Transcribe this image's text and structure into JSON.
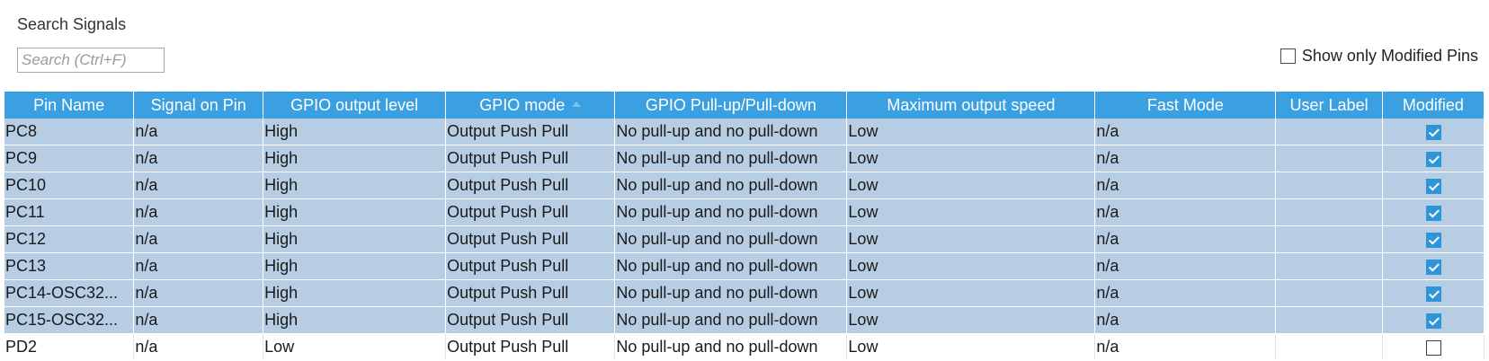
{
  "search": {
    "title": "Search Signals",
    "placeholder": "Search (Ctrl+F)",
    "value": ""
  },
  "filter": {
    "show_modified_label": "Show only Modified Pins",
    "show_modified_checked": false
  },
  "table": {
    "columns": [
      "Pin Name",
      "Signal on Pin",
      "GPIO output level",
      "GPIO mode",
      "GPIO Pull-up/Pull-down",
      "Maximum output speed",
      "Fast Mode",
      "User Label",
      "Modified"
    ],
    "sorted_column": "GPIO mode",
    "sort_direction": "ascending",
    "rows": [
      {
        "pin": "PC8",
        "signal": "n/a",
        "level": "High",
        "mode": "Output Push Pull",
        "pull": "No pull-up and no pull-down",
        "speed": "Low",
        "fast": "n/a",
        "label": "",
        "modified": true,
        "selected": true
      },
      {
        "pin": "PC9",
        "signal": "n/a",
        "level": "High",
        "mode": "Output Push Pull",
        "pull": "No pull-up and no pull-down",
        "speed": "Low",
        "fast": "n/a",
        "label": "",
        "modified": true,
        "selected": true
      },
      {
        "pin": "PC10",
        "signal": "n/a",
        "level": "High",
        "mode": "Output Push Pull",
        "pull": "No pull-up and no pull-down",
        "speed": "Low",
        "fast": "n/a",
        "label": "",
        "modified": true,
        "selected": true
      },
      {
        "pin": "PC11",
        "signal": "n/a",
        "level": "High",
        "mode": "Output Push Pull",
        "pull": "No pull-up and no pull-down",
        "speed": "Low",
        "fast": "n/a",
        "label": "",
        "modified": true,
        "selected": true
      },
      {
        "pin": "PC12",
        "signal": "n/a",
        "level": "High",
        "mode": "Output Push Pull",
        "pull": "No pull-up and no pull-down",
        "speed": "Low",
        "fast": "n/a",
        "label": "",
        "modified": true,
        "selected": true
      },
      {
        "pin": "PC13",
        "signal": "n/a",
        "level": "High",
        "mode": "Output Push Pull",
        "pull": "No pull-up and no pull-down",
        "speed": "Low",
        "fast": "n/a",
        "label": "",
        "modified": true,
        "selected": true
      },
      {
        "pin": "PC14-OSC32...",
        "signal": "n/a",
        "level": "High",
        "mode": "Output Push Pull",
        "pull": "No pull-up and no pull-down",
        "speed": "Low",
        "fast": "n/a",
        "label": "",
        "modified": true,
        "selected": true
      },
      {
        "pin": "PC15-OSC32...",
        "signal": "n/a",
        "level": "High",
        "mode": "Output Push Pull",
        "pull": "No pull-up and no pull-down",
        "speed": "Low",
        "fast": "n/a",
        "label": "",
        "modified": true,
        "selected": true
      },
      {
        "pin": "PD2",
        "signal": "n/a",
        "level": "Low",
        "mode": "Output Push Pull",
        "pull": "No pull-up and no pull-down",
        "speed": "Low",
        "fast": "n/a",
        "label": "",
        "modified": false,
        "selected": false
      }
    ]
  },
  "colors": {
    "header_bg": "#3aa0e2",
    "selected_row_bg": "#b6cde3",
    "checkbox_checked": "#2d96d8"
  }
}
